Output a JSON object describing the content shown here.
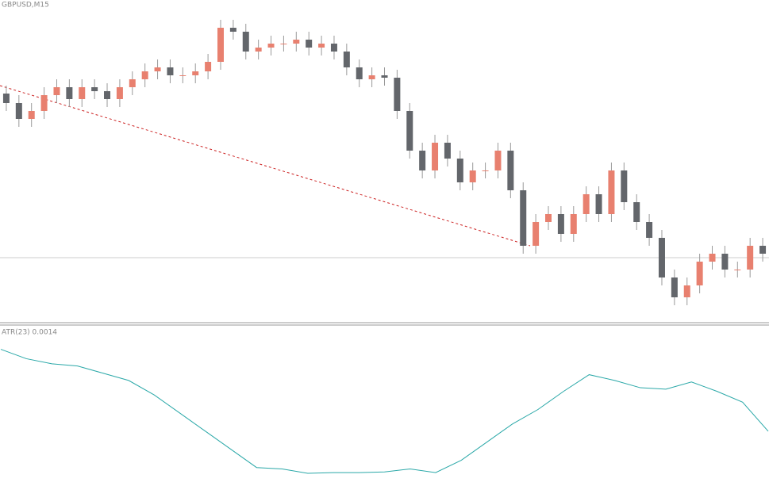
{
  "chart_data": [
    {
      "type": "candlestick",
      "title": "GBPUSD,M15",
      "open": [
        290,
        278,
        258,
        268,
        288,
        298,
        283,
        298,
        293,
        283,
        298,
        308,
        318,
        323,
        313,
        313,
        318,
        330,
        373,
        368,
        343,
        348,
        353,
        353,
        358,
        348,
        353,
        343,
        323,
        308,
        313,
        310,
        268,
        218,
        193,
        228,
        208,
        178,
        193,
        193,
        218,
        168,
        98,
        128,
        138,
        113,
        138,
        163,
        138,
        193,
        153,
        128,
        108,
        58,
        33,
        48,
        78,
        88,
        68,
        68,
        98
      ],
      "high": [
        300,
        288,
        278,
        298,
        308,
        308,
        308,
        308,
        303,
        308,
        318,
        328,
        333,
        333,
        323,
        328,
        340,
        383,
        383,
        378,
        358,
        363,
        363,
        368,
        368,
        363,
        363,
        353,
        333,
        323,
        323,
        320,
        278,
        228,
        238,
        238,
        218,
        203,
        203,
        228,
        228,
        178,
        138,
        148,
        148,
        148,
        173,
        173,
        203,
        203,
        163,
        138,
        118,
        68,
        58,
        88,
        98,
        98,
        78,
        108,
        108
      ],
      "low": [
        268,
        248,
        248,
        258,
        278,
        273,
        273,
        283,
        273,
        273,
        288,
        298,
        308,
        303,
        303,
        303,
        308,
        320,
        358,
        333,
        333,
        338,
        343,
        343,
        338,
        338,
        333,
        313,
        298,
        298,
        300,
        258,
        208,
        183,
        183,
        198,
        168,
        168,
        183,
        183,
        158,
        88,
        88,
        118,
        103,
        103,
        128,
        128,
        128,
        143,
        118,
        98,
        48,
        23,
        23,
        38,
        68,
        58,
        58,
        58,
        78
      ],
      "close": [
        278,
        258,
        268,
        288,
        298,
        283,
        298,
        293,
        283,
        298,
        308,
        318,
        323,
        313,
        313,
        318,
        330,
        373,
        368,
        343,
        348,
        353,
        353,
        358,
        348,
        353,
        343,
        323,
        308,
        313,
        310,
        268,
        218,
        193,
        228,
        208,
        178,
        193,
        193,
        218,
        168,
        98,
        128,
        138,
        113,
        138,
        163,
        138,
        193,
        153,
        128,
        108,
        58,
        33,
        48,
        78,
        88,
        68,
        68,
        98,
        88
      ],
      "ylim": [
        0,
        408
      ],
      "up_color": "#e8806f",
      "down_color": "#63666b"
    },
    {
      "type": "line",
      "title": "ATR(23) 0.0014",
      "x": [
        0,
        2,
        4,
        6,
        8,
        10,
        12,
        14,
        16,
        18,
        20,
        22,
        24,
        26,
        28,
        30,
        32,
        34,
        36,
        38,
        40,
        42,
        44,
        46,
        48,
        50,
        52,
        54,
        56,
        58,
        60
      ],
      "values": [
        183,
        170,
        163,
        160,
        150,
        140,
        120,
        95,
        70,
        45,
        20,
        18,
        12,
        13,
        13,
        14,
        18,
        13,
        30,
        55,
        80,
        100,
        125,
        148,
        140,
        130,
        128,
        138,
        125,
        110,
        70
      ],
      "xlim": [
        0,
        60
      ],
      "ylim": [
        0,
        200
      ],
      "color": "#2aa8a8"
    }
  ]
}
